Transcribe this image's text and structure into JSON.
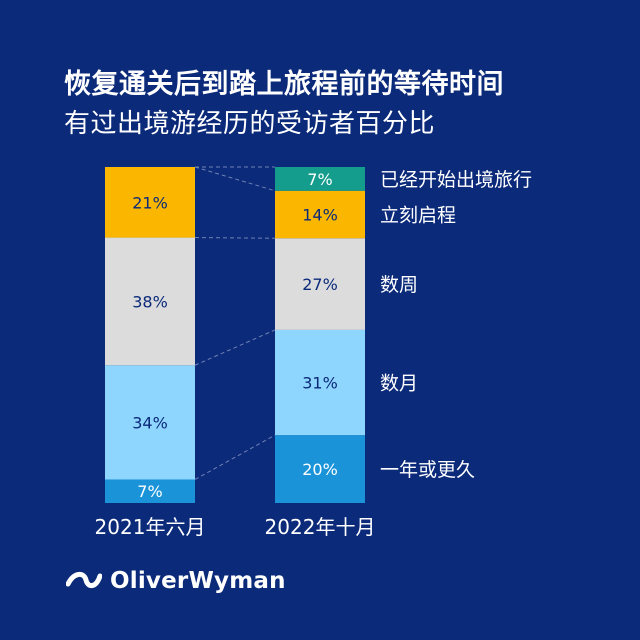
{
  "chart_data": {
    "type": "bar",
    "stacked": true,
    "normalized": true,
    "title": "恢复通关后到踏上旅程前的等待时间",
    "subtitle": "有过出境游经历的受访者百分比",
    "categories": [
      "2021年六月",
      "2022年十月"
    ],
    "series": [
      {
        "name": "一年或更久",
        "values": [
          7,
          20
        ],
        "color": "#1a93d9"
      },
      {
        "name": "数月",
        "values": [
          34,
          31
        ],
        "color": "#8fd6ff"
      },
      {
        "name": "数周",
        "values": [
          38,
          27
        ],
        "color": "#dcdcdc"
      },
      {
        "name": "立刻启程",
        "values": [
          21,
          14
        ],
        "color": "#fbb700"
      },
      {
        "name": "已经开始出境旅行",
        "values": [
          0,
          7
        ],
        "color": "#149c8c"
      }
    ],
    "data_labels": [
      [
        "7%",
        "34%",
        "38%",
        "21%",
        ""
      ],
      [
        "20%",
        "31%",
        "27%",
        "14%",
        "7%"
      ]
    ],
    "legend_placement": "right",
    "grid": false
  },
  "brand": {
    "name": "OliverWyman",
    "icon": "oliverwyman-logo-icon"
  }
}
